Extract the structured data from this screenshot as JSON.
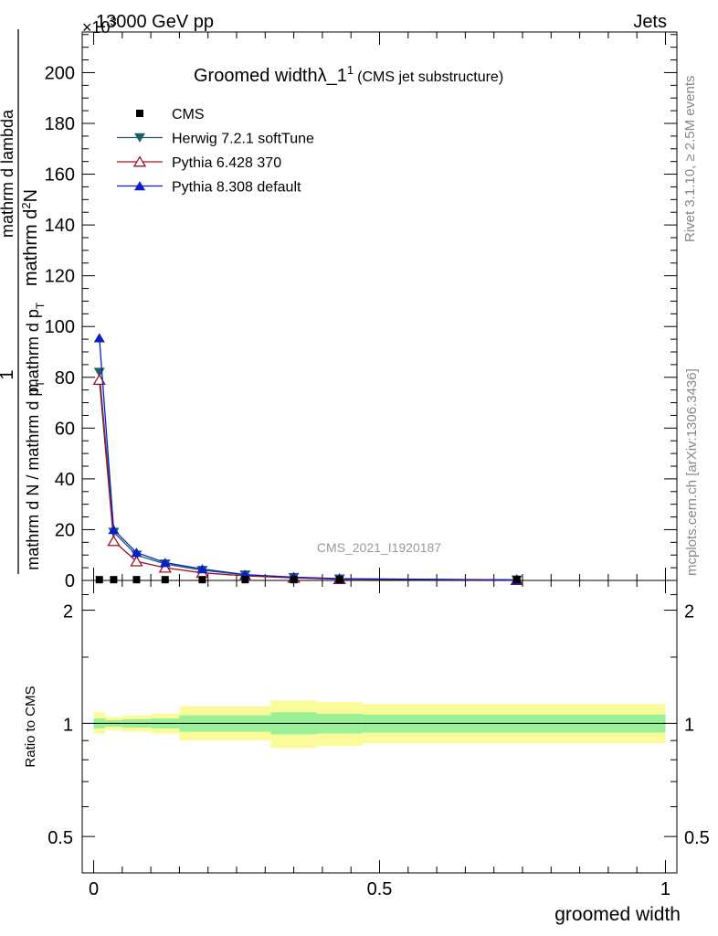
{
  "header": {
    "left": "13000 GeV pp",
    "right": "Jets",
    "exponent": "×10",
    "exponent_power": "3"
  },
  "side_labels": {
    "rivet": "Rivet 3.1.10, ≥ 2.5M events",
    "mcplots": "mcplots.cern.ch [arXiv:1306.3436]"
  },
  "watermark": "CMS_2021_I1920187",
  "title": {
    "main": "Groomed widthλ_1",
    "sup": "1",
    "sub": "(CMS jet substructure)"
  },
  "ylabel": {
    "top_numerator": "mathrm d",
    "top_numerator_sup": "2",
    "top_numerator_end": "N",
    "top_denominator": "mathrm d p",
    "top_denominator_sub": "T",
    "top_denominator_end": "mathrm d lambda",
    "one": "1",
    "bottom_denominator": "mathrm d N / mathrm d p",
    "bottom_denominator_sub": "T"
  },
  "ratio_ylabel": "Ratio to CMS",
  "xlabel": "groomed width",
  "legend": [
    {
      "label": "CMS",
      "color": "#000000",
      "marker": "square"
    },
    {
      "label": "Herwig 7.2.1 softTune",
      "color": "#1f5e63",
      "marker": "triangle-down"
    },
    {
      "label": "Pythia 6.428 370",
      "color": "#a01020",
      "marker": "triangle-open"
    },
    {
      "label": "Pythia 8.308 default",
      "color": "#0a1fcc",
      "marker": "triangle-up"
    }
  ],
  "chart_data": {
    "type": "line",
    "x": [
      0.01,
      0.035,
      0.075,
      0.125,
      0.19,
      0.265,
      0.35,
      0.43,
      0.74
    ],
    "x_edges": [
      0,
      0.02,
      0.05,
      0.1,
      0.15,
      0.23,
      0.31,
      0.39,
      0.47,
      1.0
    ],
    "xlim": [
      -0.02,
      1.02
    ],
    "ylim": [
      0,
      216
    ],
    "y_multiplier_note": "×10^3",
    "xticks": [
      0,
      0.5,
      1
    ],
    "xtick_labels": [
      "0",
      "0.5",
      "1"
    ],
    "yticks": [
      0,
      20,
      40,
      60,
      80,
      100,
      120,
      140,
      160,
      180,
      200
    ],
    "ytick_labels": [
      "0",
      "20",
      "40",
      "60",
      "80",
      "100",
      "120",
      "140",
      "160",
      "180",
      "200"
    ],
    "series": [
      {
        "name": "CMS",
        "values": [
          0.3,
          0.3,
          0.3,
          0.3,
          0.3,
          0.3,
          0.3,
          0.3,
          0.3
        ]
      },
      {
        "name": "Herwig 7.2.1 softTune",
        "values": [
          82,
          19,
          10,
          6.5,
          4,
          2.2,
          1.2,
          0.6,
          0.2
        ]
      },
      {
        "name": "Pythia 6.428 370",
        "values": [
          79,
          15.5,
          7.5,
          5,
          3,
          1.8,
          1.0,
          0.5,
          0.15
        ]
      },
      {
        "name": "Pythia 8.308 default",
        "values": [
          95.5,
          20,
          11,
          7,
          4.5,
          2.3,
          1.3,
          0.7,
          0.2
        ]
      }
    ],
    "ratio": {
      "ylim": [
        0.4,
        2.4
      ],
      "log_scale": true,
      "yticks": [
        0.5,
        1,
        2
      ],
      "ytick_labels": [
        "0.5",
        "1",
        "2"
      ],
      "band_inner": [
        {
          "x0": 0.0,
          "x1": 0.02,
          "lo": 0.97,
          "hi": 1.03
        },
        {
          "x0": 0.02,
          "x1": 0.05,
          "lo": 0.98,
          "hi": 1.02
        },
        {
          "x0": 0.05,
          "x1": 0.1,
          "lo": 0.975,
          "hi": 1.025
        },
        {
          "x0": 0.1,
          "x1": 0.15,
          "lo": 0.97,
          "hi": 1.03
        },
        {
          "x0": 0.15,
          "x1": 0.31,
          "lo": 0.95,
          "hi": 1.05
        },
        {
          "x0": 0.31,
          "x1": 0.39,
          "lo": 0.935,
          "hi": 1.07
        },
        {
          "x0": 0.39,
          "x1": 0.47,
          "lo": 0.94,
          "hi": 1.06
        },
        {
          "x0": 0.47,
          "x1": 1.0,
          "lo": 0.945,
          "hi": 1.055
        }
      ],
      "band_outer": [
        {
          "x0": 0.0,
          "x1": 0.02,
          "lo": 0.94,
          "hi": 1.07
        },
        {
          "x0": 0.02,
          "x1": 0.05,
          "lo": 0.96,
          "hi": 1.04
        },
        {
          "x0": 0.05,
          "x1": 0.1,
          "lo": 0.95,
          "hi": 1.05
        },
        {
          "x0": 0.1,
          "x1": 0.15,
          "lo": 0.94,
          "hi": 1.06
        },
        {
          "x0": 0.15,
          "x1": 0.31,
          "lo": 0.9,
          "hi": 1.11
        },
        {
          "x0": 0.31,
          "x1": 0.39,
          "lo": 0.86,
          "hi": 1.15
        },
        {
          "x0": 0.39,
          "x1": 0.47,
          "lo": 0.87,
          "hi": 1.14
        },
        {
          "x0": 0.47,
          "x1": 1.0,
          "lo": 0.885,
          "hi": 1.125
        }
      ]
    },
    "colors": {
      "band_inner": "#99f099",
      "band_outer": "#fbfb99"
    }
  }
}
